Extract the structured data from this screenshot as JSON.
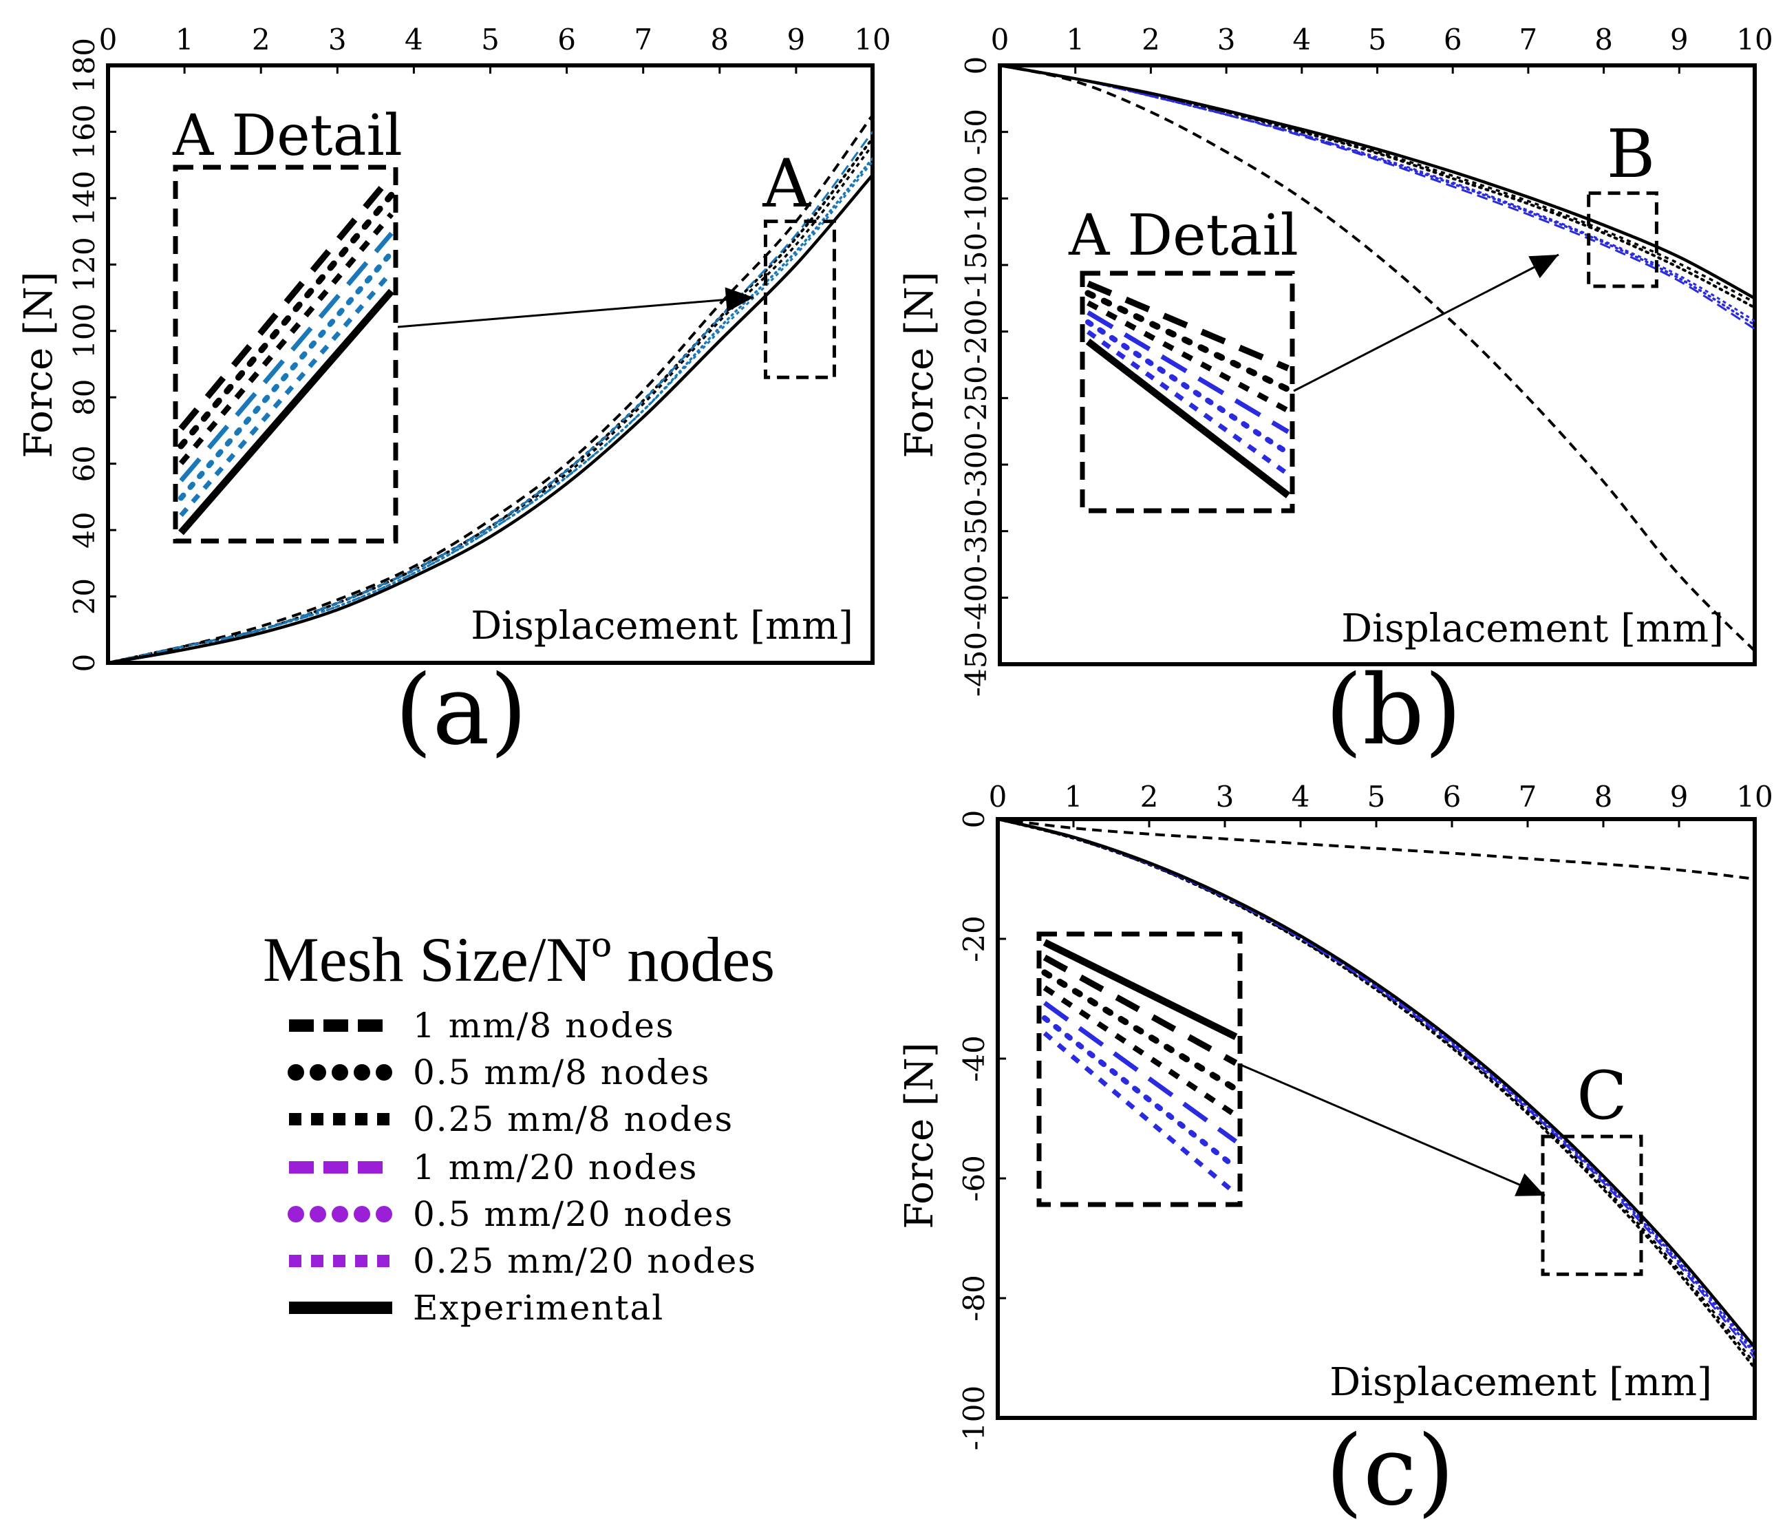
{
  "colors": {
    "experimental": "#000000",
    "mesh8": "#000000",
    "mesh20_legend": "#9a1fd6",
    "mesh20_a": "#1a78b8",
    "mesh20_bc": "#2a2adf"
  },
  "legend": {
    "title": "Mesh Size/Nº nodes",
    "items": [
      {
        "label": "1 mm/8 nodes",
        "style": "dash",
        "color": "#000000"
      },
      {
        "label": "0.5 mm/8 nodes",
        "style": "dot",
        "color": "#000000"
      },
      {
        "label": "0.25 mm/8 nodes",
        "style": "square",
        "color": "#000000"
      },
      {
        "label": "1 mm/20 nodes",
        "style": "dash",
        "color": "#9a1fd6"
      },
      {
        "label": "0.5 mm/20 nodes",
        "style": "dot",
        "color": "#9a1fd6"
      },
      {
        "label": "0.25 mm/20 nodes",
        "style": "square",
        "color": "#9a1fd6"
      },
      {
        "label": "Experimental",
        "style": "solid",
        "color": "#000000"
      }
    ]
  },
  "chart_data": [
    {
      "panel": "(a)",
      "type": "line",
      "xlabel": "Displacement [mm]",
      "ylabel": "Force [N]",
      "xlim": [
        0,
        10
      ],
      "ylim": [
        0,
        180
      ],
      "xticks": [
        0,
        1,
        2,
        3,
        4,
        5,
        6,
        7,
        8,
        9,
        10
      ],
      "yticks": [
        0,
        20,
        40,
        60,
        80,
        100,
        120,
        140,
        160,
        180
      ],
      "x": [
        0,
        1,
        2,
        3,
        4,
        5,
        6,
        7,
        8,
        9,
        10
      ],
      "series": [
        {
          "name": "1 mm/8 nodes",
          "values": [
            0,
            5,
            11,
            19,
            29,
            43,
            60,
            82,
            108,
            133,
            165
          ]
        },
        {
          "name": "0.5 mm/8 nodes",
          "values": [
            0,
            5,
            10,
            18,
            28,
            41,
            58,
            79,
            104,
            128,
            158
          ]
        },
        {
          "name": "0.25 mm/8 nodes",
          "values": [
            0,
            5,
            10,
            18,
            28,
            41,
            57,
            78,
            103,
            126,
            156
          ]
        },
        {
          "name": "1 mm/20 nodes",
          "values": [
            0,
            5,
            10,
            18,
            28,
            41,
            58,
            79,
            104,
            129,
            160
          ]
        },
        {
          "name": "0.5 mm/20 nodes",
          "values": [
            0,
            4,
            10,
            17,
            27,
            40,
            56,
            76,
            101,
            124,
            152
          ]
        },
        {
          "name": "0.25 mm/20 nodes",
          "values": [
            0,
            4,
            10,
            17,
            27,
            40,
            56,
            76,
            100,
            123,
            151
          ]
        },
        {
          "name": "Experimental",
          "values": [
            0,
            4,
            9,
            16,
            26,
            38,
            54,
            74,
            97,
            120,
            147
          ]
        }
      ],
      "annotations": {
        "detail_title": "A Detail",
        "zoom_label": "A",
        "zoom_x": [
          8.6,
          9.5
        ],
        "zoom_y": [
          86,
          133
        ]
      }
    },
    {
      "panel": "(b)",
      "type": "line",
      "xlabel": "Displacement [mm]",
      "ylabel": "Force [N]",
      "xlim": [
        0,
        10
      ],
      "ylim": [
        -450,
        0
      ],
      "xticks": [
        0,
        1,
        2,
        3,
        4,
        5,
        6,
        7,
        8,
        9,
        10
      ],
      "yticks": [
        0,
        -50,
        -100,
        -150,
        -200,
        -250,
        -300,
        -350,
        -400,
        -450
      ],
      "x": [
        0,
        1,
        2,
        3,
        4,
        5,
        6,
        7,
        8,
        9,
        10
      ],
      "series": [
        {
          "name": "1 mm/8 nodes",
          "values": [
            0,
            -12,
            -35,
            -65,
            -100,
            -143,
            -193,
            -250,
            -313,
            -383,
            -440
          ]
        },
        {
          "name": "0.5 mm/8 nodes",
          "values": [
            0,
            -10,
            -22,
            -35,
            -50,
            -66,
            -85,
            -104,
            -126,
            -152,
            -182
          ]
        },
        {
          "name": "0.25 mm/8 nodes",
          "values": [
            0,
            -10,
            -22,
            -35,
            -49,
            -65,
            -83,
            -102,
            -124,
            -149,
            -178
          ]
        },
        {
          "name": "1 mm/20 nodes",
          "values": [
            0,
            -10,
            -23,
            -37,
            -53,
            -71,
            -91,
            -112,
            -135,
            -162,
            -198
          ]
        },
        {
          "name": "0.5 mm/20 nodes",
          "values": [
            0,
            -10,
            -23,
            -37,
            -52,
            -70,
            -89,
            -110,
            -133,
            -160,
            -195
          ]
        },
        {
          "name": "0.25 mm/20 nodes",
          "values": [
            0,
            -10,
            -23,
            -37,
            -52,
            -69,
            -88,
            -109,
            -132,
            -158,
            -192
          ]
        },
        {
          "name": "Experimental",
          "values": [
            0,
            -10,
            -21,
            -34,
            -48,
            -63,
            -80,
            -99,
            -120,
            -144,
            -175
          ]
        }
      ],
      "annotations": {
        "detail_title": "A Detail",
        "zoom_label": "B",
        "zoom_x": [
          7.8,
          8.7
        ],
        "zoom_y": [
          -166,
          -96
        ]
      }
    },
    {
      "panel": "(c)",
      "type": "line",
      "xlabel": "Displacement [mm]",
      "ylabel": "Force [N]",
      "xlim": [
        0,
        10
      ],
      "ylim": [
        -100,
        0
      ],
      "xticks": [
        0,
        1,
        2,
        3,
        4,
        5,
        6,
        7,
        8,
        9,
        10
      ],
      "yticks": [
        0,
        -20,
        -40,
        -60,
        -80,
        -100
      ],
      "ytick_labels": [
        "0",
        "-20",
        "-40",
        "-60",
        "-80",
        "-100"
      ],
      "x": [
        0,
        1,
        2,
        3,
        4,
        5,
        6,
        7,
        8,
        9,
        10
      ],
      "series": [
        {
          "name": "1 mm/8 nodes",
          "values": [
            0,
            -1.5,
            -2.5,
            -3.3,
            -4.1,
            -4.9,
            -5.7,
            -6.6,
            -7.5,
            -8.5,
            -10
          ]
        },
        {
          "name": "0.5 mm/8 nodes",
          "values": [
            0,
            -3.2,
            -7.6,
            -13.3,
            -20.2,
            -28.5,
            -38.2,
            -49.2,
            -61.8,
            -75.9,
            -91.7
          ]
        },
        {
          "name": "0.25 mm/8 nodes",
          "values": [
            0,
            -3.2,
            -7.6,
            -13.2,
            -20.1,
            -28.3,
            -37.9,
            -48.8,
            -61.3,
            -75.3,
            -90.9
          ]
        },
        {
          "name": "1 mm/20 nodes",
          "values": [
            0,
            -3.1,
            -7.5,
            -13.1,
            -19.9,
            -28.1,
            -37.6,
            -48.4,
            -60.7,
            -74.5,
            -90
          ]
        },
        {
          "name": "0.5 mm/20 nodes",
          "values": [
            0,
            -3.1,
            -7.5,
            -13,
            -19.8,
            -27.9,
            -37.3,
            -48.1,
            -60.3,
            -74,
            -89.3
          ]
        },
        {
          "name": "0.25 mm/20 nodes",
          "values": [
            0,
            -3.1,
            -7.4,
            -12.9,
            -19.7,
            -27.7,
            -37.1,
            -47.8,
            -60,
            -73.6,
            -88.8
          ]
        },
        {
          "name": "Experimental",
          "values": [
            0,
            -3,
            -7.3,
            -12.8,
            -19.5,
            -27.5,
            -36.8,
            -47.5,
            -59.6,
            -73.1,
            -88.2
          ]
        }
      ],
      "annotations": {
        "detail_title": "",
        "zoom_label": "C",
        "zoom_x": [
          7.2,
          8.5
        ],
        "zoom_y": [
          -76,
          -53
        ]
      }
    }
  ]
}
